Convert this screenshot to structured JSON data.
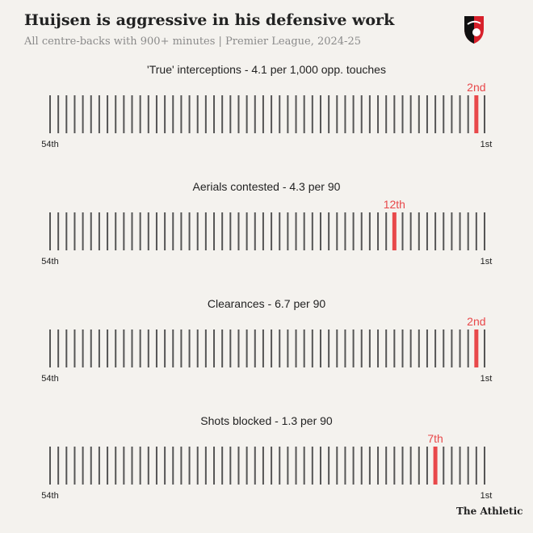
{
  "header": {
    "title": "Huijsen is aggressive in his defensive work",
    "subtitle": "All centre-backs with 900+ minutes | Premier League, 2024-25"
  },
  "logo": {
    "icon": "afc-bournemouth-crest-icon",
    "colors": [
      "#d7202a",
      "#111111",
      "#ffffff"
    ]
  },
  "credit": "The Athletic",
  "colors": {
    "bar": "#555555",
    "highlight": "#e8484a",
    "background": "#f4f2ee"
  },
  "chart_data": [
    {
      "type": "bar",
      "title": "'True' interceptions - 4.1 per 1,000 opp. touches",
      "total": 54,
      "highlight_rank": 2,
      "highlight_label": "2nd",
      "left_label": "54th",
      "right_label": "1st"
    },
    {
      "type": "bar",
      "title": "Aerials contested - 4.3 per 90",
      "total": 54,
      "highlight_rank": 12,
      "highlight_label": "12th",
      "left_label": "54th",
      "right_label": "1st"
    },
    {
      "type": "bar",
      "title": "Clearances - 6.7 per 90",
      "total": 54,
      "highlight_rank": 2,
      "highlight_label": "2nd",
      "left_label": "54th",
      "right_label": "1st"
    },
    {
      "type": "bar",
      "title": "Shots blocked - 1.3 per 90",
      "total": 54,
      "highlight_rank": 7,
      "highlight_label": "7th",
      "left_label": "54th",
      "right_label": "1st"
    }
  ]
}
